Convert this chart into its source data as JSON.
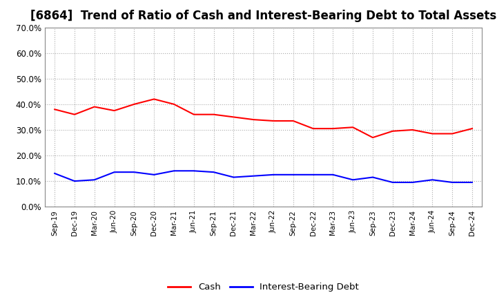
{
  "title": "[6864]  Trend of Ratio of Cash and Interest-Bearing Debt to Total Assets",
  "x_labels": [
    "Sep-19",
    "Dec-19",
    "Mar-20",
    "Jun-20",
    "Sep-20",
    "Dec-20",
    "Mar-21",
    "Jun-21",
    "Sep-21",
    "Dec-21",
    "Mar-22",
    "Jun-22",
    "Sep-22",
    "Dec-22",
    "Mar-23",
    "Jun-23",
    "Sep-23",
    "Dec-23",
    "Mar-24",
    "Jun-24",
    "Sep-24",
    "Dec-24"
  ],
  "cash": [
    0.38,
    0.36,
    0.39,
    0.375,
    0.4,
    0.42,
    0.4,
    0.36,
    0.36,
    0.35,
    0.34,
    0.335,
    0.335,
    0.305,
    0.305,
    0.31,
    0.27,
    0.295,
    0.3,
    0.285,
    0.285,
    0.305
  ],
  "debt": [
    0.13,
    0.1,
    0.105,
    0.135,
    0.135,
    0.125,
    0.14,
    0.14,
    0.135,
    0.115,
    0.12,
    0.125,
    0.125,
    0.125,
    0.125,
    0.105,
    0.115,
    0.095,
    0.095,
    0.105,
    0.095,
    0.095
  ],
  "cash_color": "#ff0000",
  "debt_color": "#0000ff",
  "ylim": [
    0.0,
    0.7
  ],
  "yticks": [
    0.0,
    0.1,
    0.2,
    0.3,
    0.4,
    0.5,
    0.6,
    0.7
  ],
  "background_color": "#ffffff",
  "grid_color": "#aaaaaa",
  "title_fontsize": 12,
  "legend_labels": [
    "Cash",
    "Interest-Bearing Debt"
  ]
}
